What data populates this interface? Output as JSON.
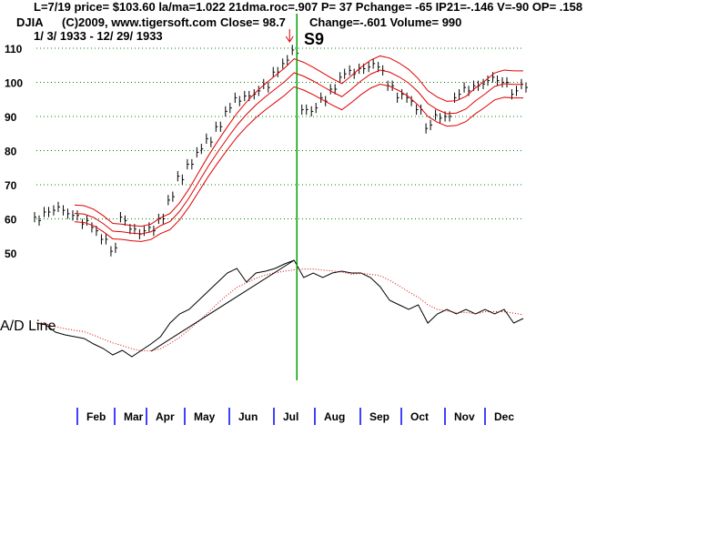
{
  "header": {
    "line1": "L=7/19  price= $103.60  la/ma=1.022 21dma.roc=.907 P=  37 Pchange= -65 IP21=-.146 V=-90 OP= .158",
    "symbol": "DJIA",
    "copyright": "(C)2009, www.tigersoft.com",
    "close": "Close=  98.7",
    "change": "Change=-.601 Volume= 990",
    "daterange": "1/ 3/ 1933 - 12/ 29/ 1933"
  },
  "colors": {
    "grid": "#008000",
    "band": "#e00000",
    "signal_line": "#00a000",
    "month_tick": "#0000ff"
  },
  "chart_data": {
    "type": "line",
    "title": "DJIA 1933",
    "signal": {
      "label": "S9",
      "week": 27
    },
    "price": {
      "yticks": [
        50,
        60,
        70,
        80,
        90,
        100,
        110
      ],
      "ylim": [
        48,
        112
      ],
      "closes": [
        60,
        62,
        63,
        62,
        61,
        59,
        57,
        54,
        51,
        60,
        57,
        56,
        57,
        60,
        66,
        72,
        76,
        80,
        83,
        87,
        92,
        95,
        96,
        97,
        99,
        103,
        106,
        109,
        92,
        92,
        95,
        98,
        102,
        103,
        104,
        105,
        104,
        99,
        96,
        95,
        92,
        87,
        90,
        90,
        96,
        98,
        99,
        100,
        101,
        100,
        97,
        99
      ],
      "typical_range": 3,
      "bands": {
        "ma_period": 4,
        "pct": 0.04
      }
    },
    "ad_line": {
      "label": "A/D Line",
      "values": [
        40,
        38,
        30,
        27,
        25,
        23,
        17,
        12,
        5,
        10,
        3,
        10,
        17,
        25,
        40,
        50,
        55,
        65,
        75,
        85,
        95,
        100,
        85,
        95,
        97,
        100,
        105,
        109,
        90,
        95,
        90,
        95,
        97,
        95,
        95,
        90,
        80,
        65,
        60,
        55,
        60,
        40,
        50,
        55,
        50,
        55,
        50,
        55,
        50,
        55,
        40,
        45
      ],
      "ma_period": 5,
      "trendline": [
        12,
        27
      ]
    },
    "months": [
      "Feb",
      "Mar",
      "Apr",
      "May",
      "Jun",
      "Jul",
      "Aug",
      "Sep",
      "Oct",
      "Nov",
      "Dec"
    ]
  }
}
